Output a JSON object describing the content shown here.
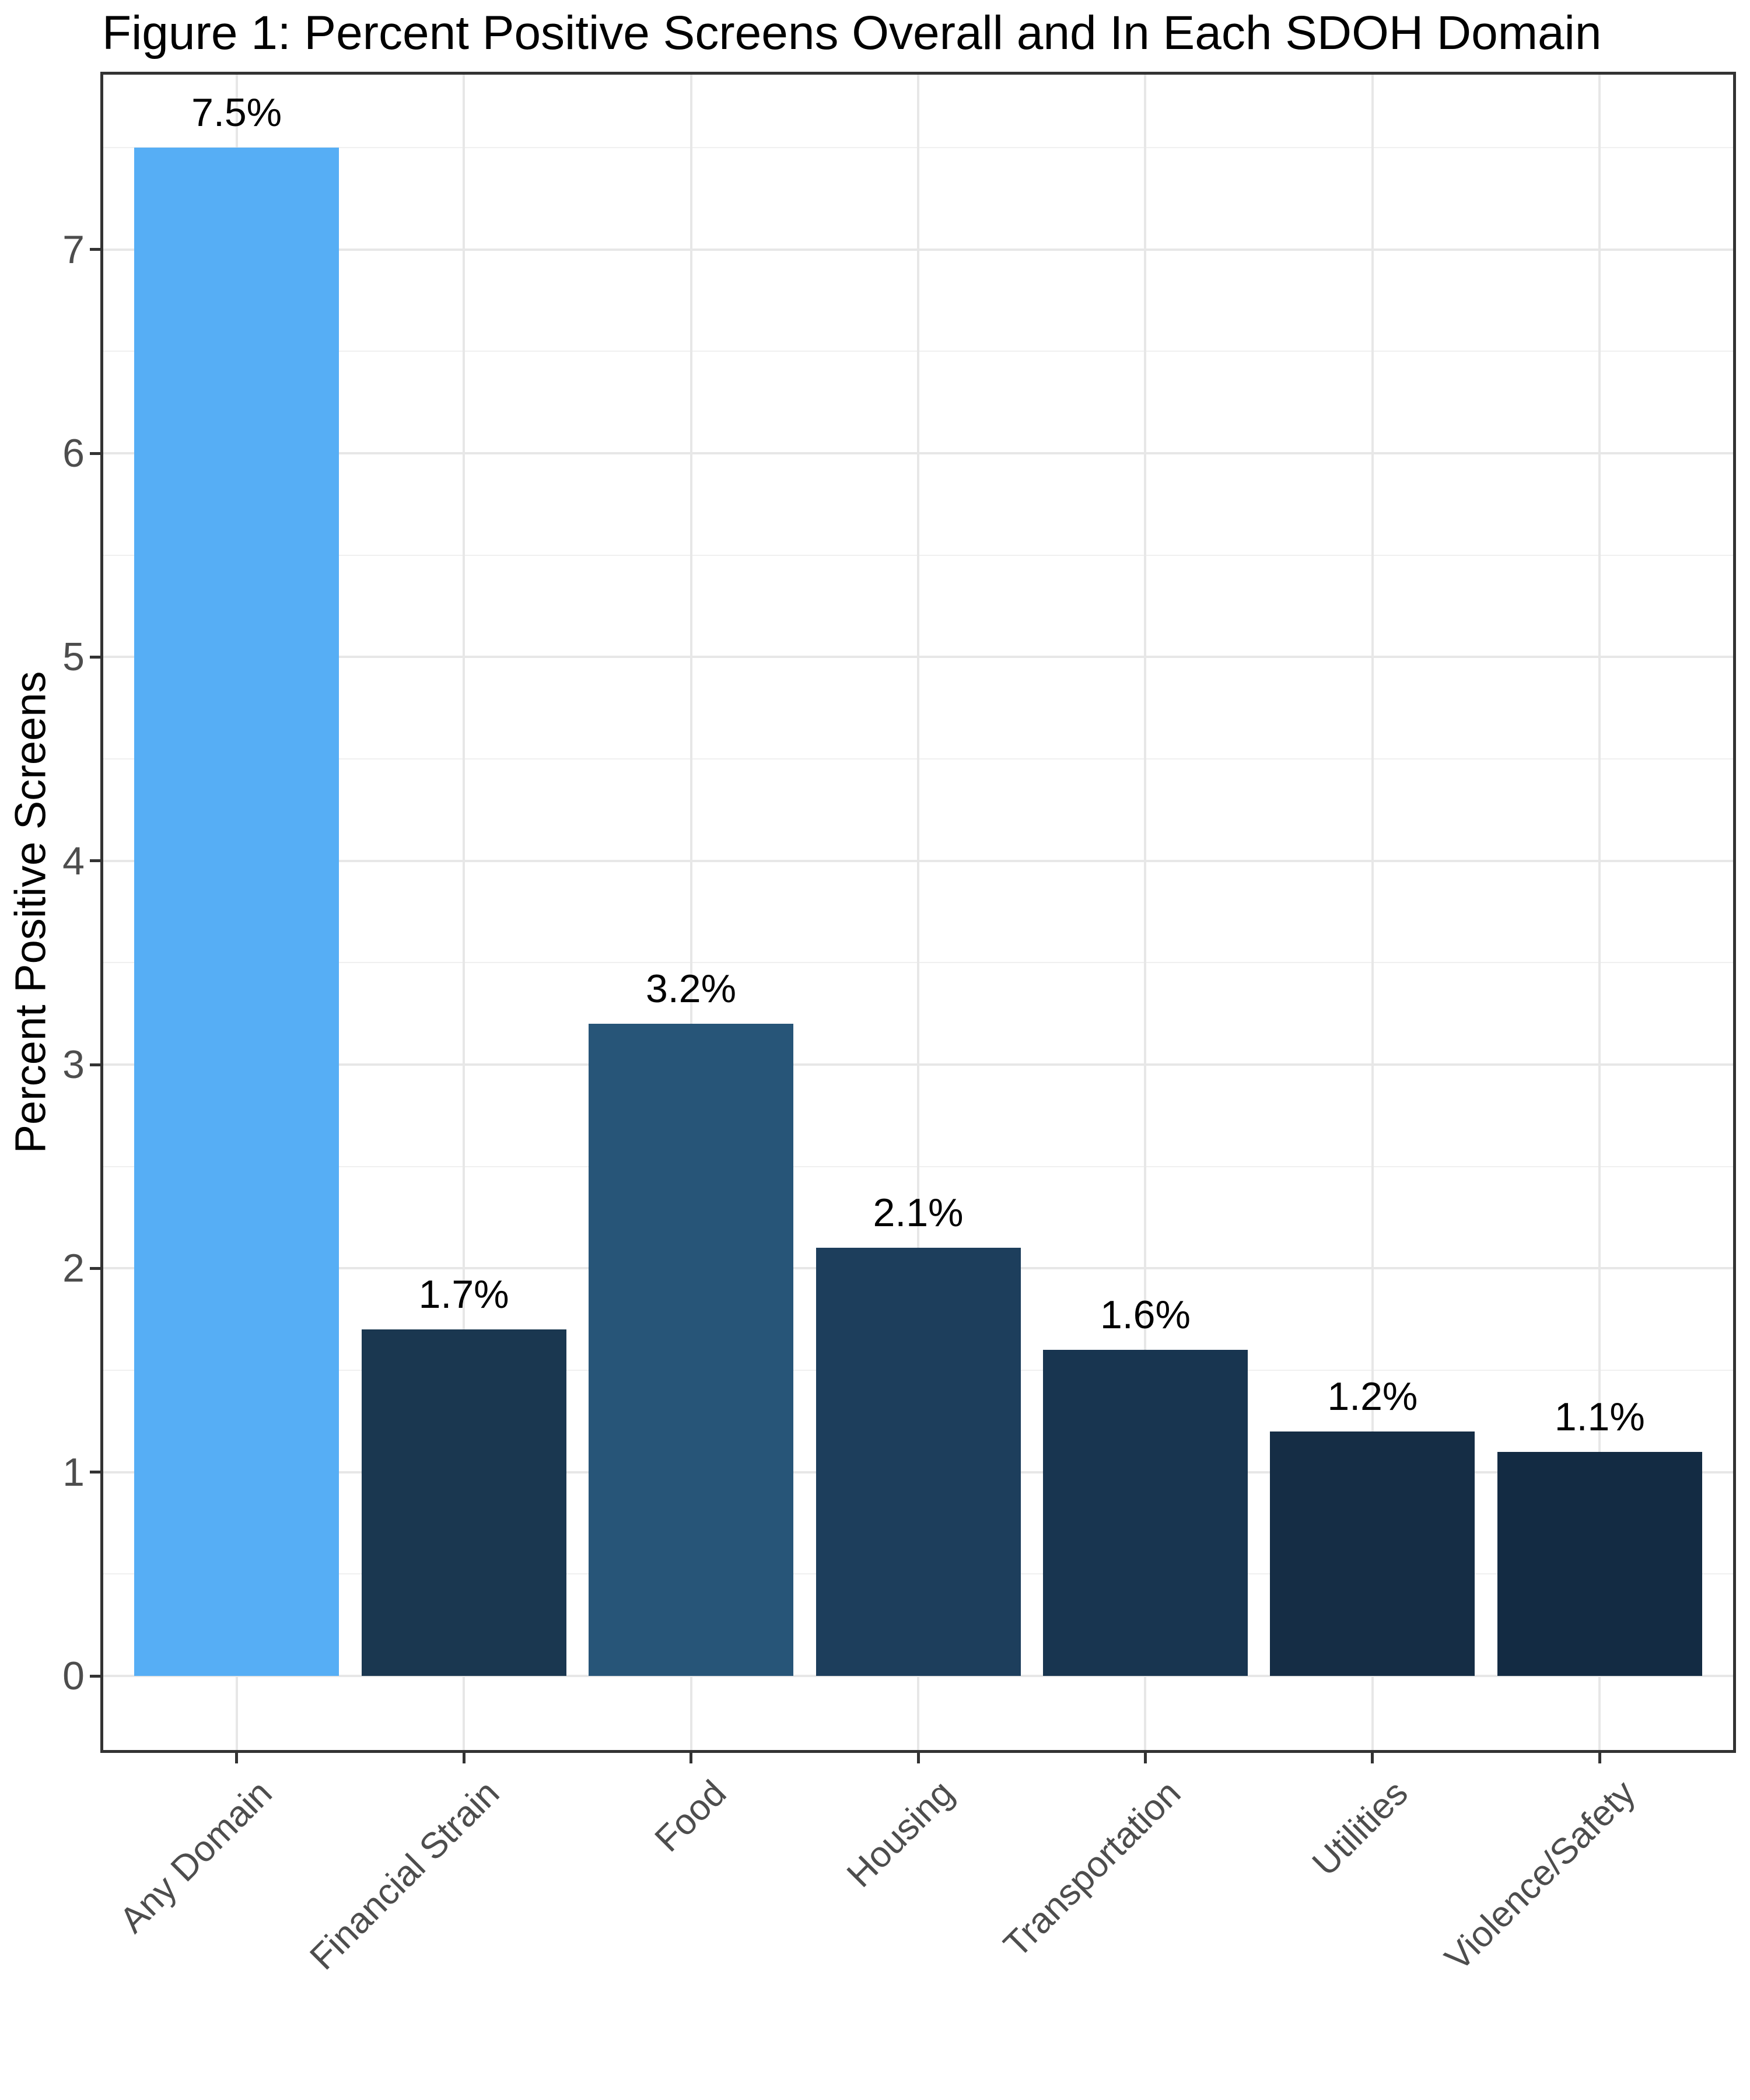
{
  "figure": {
    "title": "Figure 1: Percent Positive Screens Overall and In Each SDOH Domain"
  },
  "chart_data": {
    "type": "bar",
    "title": "Figure 1: Percent Positive Screens Overall and In Each SDOH Domain",
    "xlabel": "",
    "ylabel": "Percent Positive Screens",
    "categories": [
      "Any Domain",
      "Financial Strain",
      "Food",
      "Housing",
      "Transportation",
      "Utilities",
      "Violence/Safety"
    ],
    "values": [
      7.5,
      1.7,
      3.2,
      2.1,
      1.6,
      1.2,
      1.1
    ],
    "bar_labels": [
      "7.5%",
      "1.7%",
      "3.2%",
      "2.1%",
      "1.6%",
      "1.2%",
      "1.1%"
    ],
    "bar_colors": [
      "#56AEF5",
      "#1A3750",
      "#275578",
      "#1D3E5C",
      "#183550",
      "#152D45",
      "#132B43"
    ],
    "y_ticks": [
      0,
      1,
      2,
      3,
      4,
      5,
      6,
      7
    ],
    "y_minor_ticks": [
      0.5,
      1.5,
      2.5,
      3.5,
      4.5,
      5.5,
      6.5,
      7.5
    ],
    "ylim": [
      0,
      7.875
    ],
    "grid": "horizontal major+minor, vertical at category centers",
    "legend": "none",
    "colors": {
      "grid_major": "#E7E7E7",
      "grid_minor": "#F0F0F0",
      "panel_border": "#333333",
      "tick_mark": "#333333",
      "axis_text": "#4D4D4D",
      "title_text": "#000000",
      "background": "#FFFFFF"
    }
  }
}
